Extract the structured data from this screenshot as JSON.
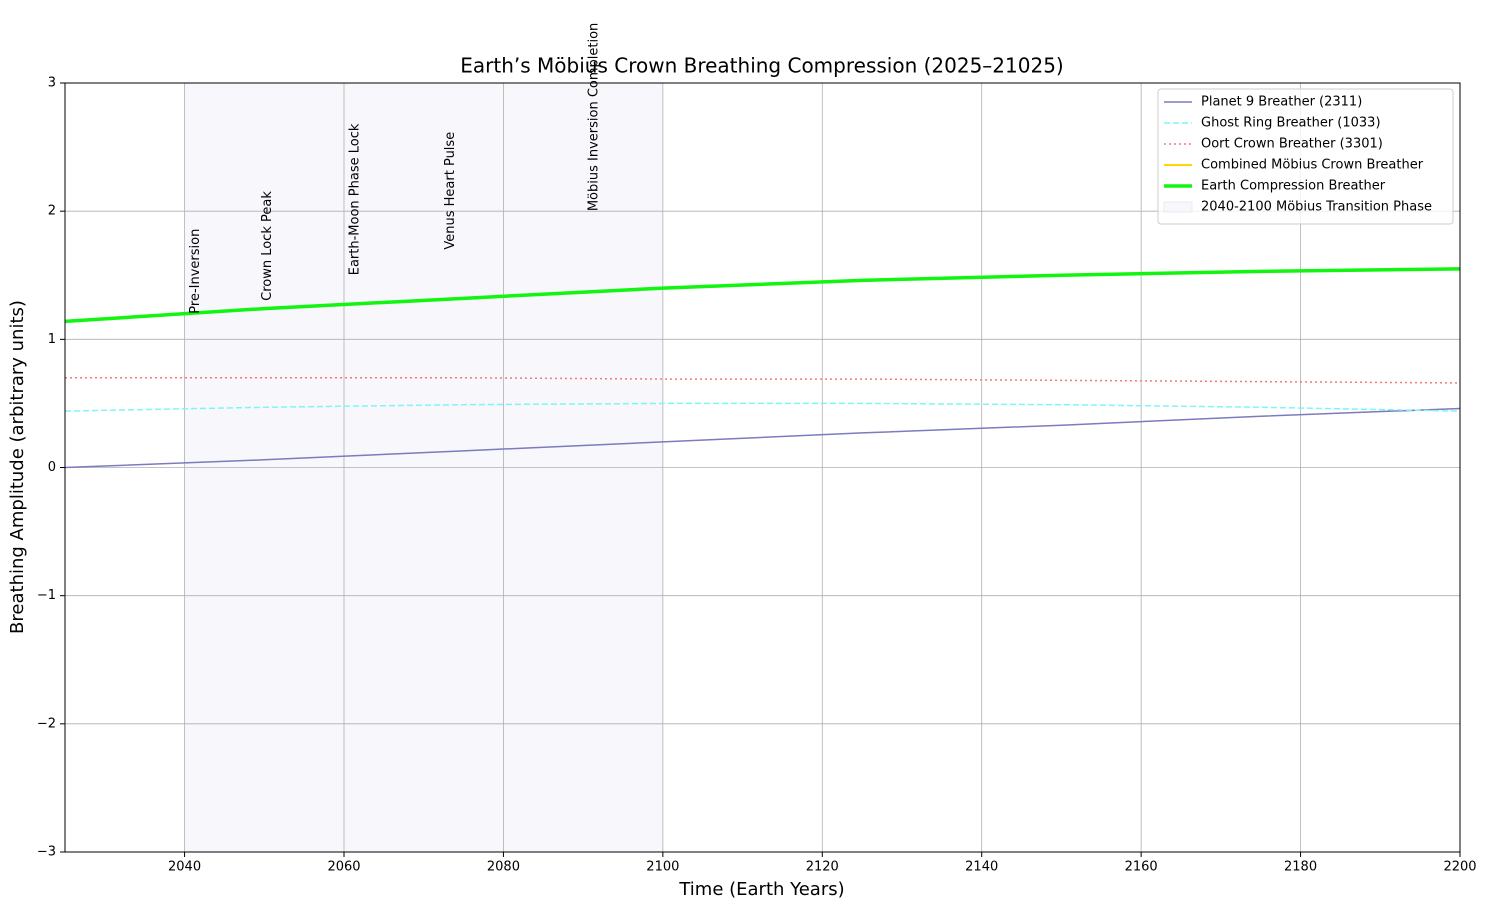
{
  "chart_data": {
    "type": "line",
    "title": "Earth’s Möbius Crown Breathing Compression (2025–21025)",
    "xlabel": "Time (Earth Years)",
    "ylabel": "Breathing Amplitude (arbitrary units)",
    "x": [
      2025,
      2050,
      2075,
      2100,
      2125,
      2150,
      2175,
      2200
    ],
    "series": [
      {
        "name": "Planet 9 Breather (2311)",
        "color": "#7b7bbd",
        "linestyle": "solid",
        "linewidth": 1.5,
        "values": [
          0,
          0.06,
          0.13,
          0.2,
          0.27,
          0.33,
          0.4,
          0.46
        ]
      },
      {
        "name": "Ghost Ring Breather (1033)",
        "color": "#7ff5f5",
        "linestyle": "dashed",
        "linewidth": 1.5,
        "values": [
          0.44,
          0.47,
          0.49,
          0.5,
          0.5,
          0.49,
          0.47,
          0.44
        ]
      },
      {
        "name": "Oort Crown Breather (3301)",
        "color": "#f47a7a",
        "linestyle": "dotted",
        "linewidth": 1.5,
        "values": [
          0.7,
          0.7,
          0.7,
          0.69,
          0.69,
          0.68,
          0.67,
          0.66
        ]
      },
      {
        "name": "Combined Möbius Crown Breather",
        "color": "#ffd700",
        "linestyle": "solid",
        "linewidth": 2,
        "values": [
          1.14,
          1.24,
          1.32,
          1.4,
          1.46,
          1.5,
          1.53,
          1.55
        ]
      },
      {
        "name": "Earth Compression Breather",
        "color": "#11f511",
        "linestyle": "solid",
        "linewidth": 3.5,
        "values": [
          1.14,
          1.24,
          1.32,
          1.4,
          1.46,
          1.5,
          1.53,
          1.55
        ]
      }
    ],
    "shaded_span": {
      "x": [
        2040,
        2100
      ],
      "label": "2040-2100 Möbius Transition Phase",
      "color": "#f7f7fc"
    },
    "annotations": [
      {
        "text": "Pre-Inversion",
        "x": 2040,
        "y": 1.2
      },
      {
        "text": "Crown Lock Peak",
        "x": 2049,
        "y": 1.3
      },
      {
        "text": "Earth-Moon Phase Lock",
        "x": 2060,
        "y": 1.5
      },
      {
        "text": "Venus Heart Pulse",
        "x": 2072,
        "y": 1.7
      },
      {
        "text": "Möbius Inversion Completion",
        "x": 2090,
        "y": 2.0
      }
    ],
    "xlim": [
      2025,
      2200
    ],
    "xticks": [
      2040,
      2060,
      2080,
      2100,
      2120,
      2140,
      2160,
      2180,
      2200
    ],
    "ylim": [
      -3,
      3
    ],
    "yticks": [
      {
        "value": -3,
        "label": "−3"
      },
      {
        "value": -2,
        "label": "−2"
      },
      {
        "value": -1,
        "label": "−1"
      },
      0,
      1,
      2,
      3
    ],
    "grid": true,
    "legend": "upper right"
  }
}
